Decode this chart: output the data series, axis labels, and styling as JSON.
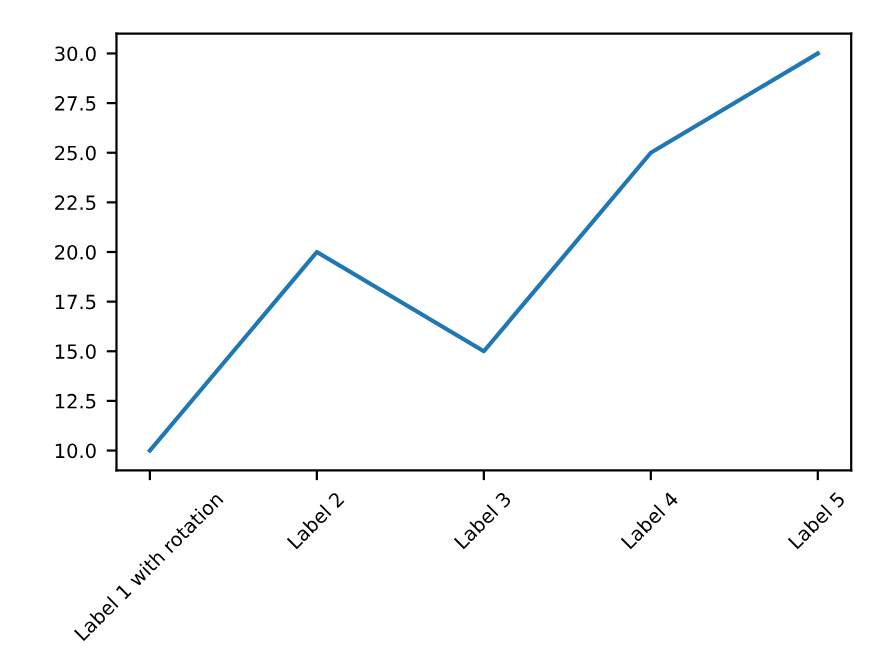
{
  "chart_data": {
    "type": "line",
    "categories": [
      "Label 1 with rotation",
      "Label 2",
      "Label 3",
      "Label 4",
      "Label 5"
    ],
    "series": [
      {
        "color": "#1f77b4",
        "values": [
          10,
          20,
          15,
          25,
          30
        ]
      }
    ],
    "ylim": [
      9,
      31
    ],
    "yticks": [
      {
        "value": 10,
        "label": "10.0"
      },
      12.5,
      {
        "value": 15,
        "label": "15.0"
      },
      17.5,
      {
        "value": 20,
        "label": "20.0"
      },
      22.5,
      {
        "value": 25,
        "label": "25.0"
      },
      27.5,
      {
        "value": 30,
        "label": "30.0"
      }
    ],
    "grid": false,
    "legend": false,
    "marker": "none",
    "line_style": "solid"
  }
}
